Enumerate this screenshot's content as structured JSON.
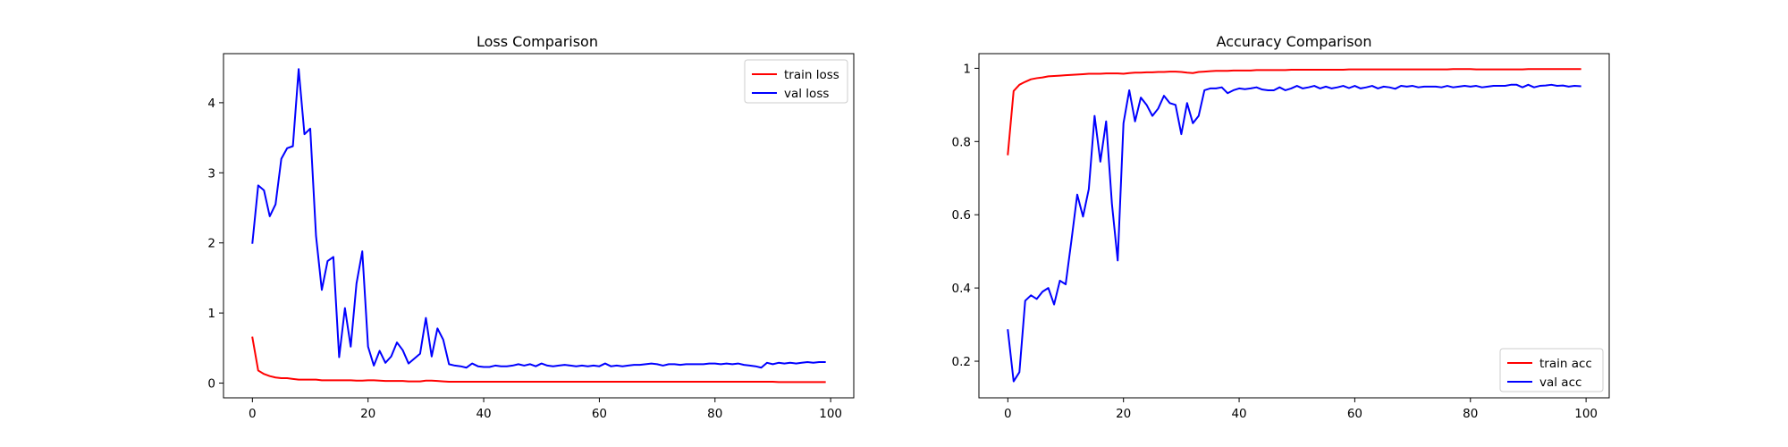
{
  "chart_data": [
    {
      "type": "line",
      "title": "Loss Comparison",
      "xlabel": "",
      "ylabel": "",
      "xlim": [
        -5,
        104
      ],
      "ylim": [
        -0.21,
        4.7
      ],
      "xticks": [
        0,
        20,
        40,
        60,
        80,
        100
      ],
      "yticks": [
        0,
        1,
        2,
        3,
        4
      ],
      "legend_position": "upper right",
      "series": [
        {
          "name": "train loss",
          "color": "#ff0000",
          "x_start": 0,
          "values": [
            0.65,
            0.18,
            0.13,
            0.1,
            0.08,
            0.07,
            0.07,
            0.06,
            0.05,
            0.05,
            0.05,
            0.05,
            0.04,
            0.04,
            0.04,
            0.04,
            0.04,
            0.04,
            0.035,
            0.035,
            0.04,
            0.04,
            0.035,
            0.03,
            0.03,
            0.03,
            0.03,
            0.025,
            0.025,
            0.025,
            0.035,
            0.035,
            0.03,
            0.025,
            0.02,
            0.02,
            0.02,
            0.02,
            0.02,
            0.02,
            0.02,
            0.02,
            0.02,
            0.02,
            0.02,
            0.02,
            0.02,
            0.02,
            0.02,
            0.02,
            0.02,
            0.02,
            0.02,
            0.02,
            0.02,
            0.02,
            0.02,
            0.02,
            0.02,
            0.02,
            0.02,
            0.02,
            0.02,
            0.02,
            0.02,
            0.02,
            0.02,
            0.02,
            0.02,
            0.02,
            0.02,
            0.02,
            0.02,
            0.02,
            0.02,
            0.02,
            0.02,
            0.02,
            0.02,
            0.02,
            0.02,
            0.02,
            0.02,
            0.02,
            0.02,
            0.02,
            0.02,
            0.02,
            0.02,
            0.02,
            0.02,
            0.015,
            0.015,
            0.015,
            0.015,
            0.015,
            0.015,
            0.015,
            0.015,
            0.015
          ]
        },
        {
          "name": "val loss",
          "color": "#0000ff",
          "x_start": 0,
          "values": [
            2.0,
            2.82,
            2.75,
            2.38,
            2.55,
            3.2,
            3.35,
            3.38,
            4.48,
            3.55,
            3.63,
            2.1,
            1.33,
            1.74,
            1.8,
            0.37,
            1.07,
            0.52,
            1.42,
            1.88,
            0.52,
            0.25,
            0.46,
            0.29,
            0.38,
            0.58,
            0.47,
            0.28,
            0.35,
            0.42,
            0.93,
            0.38,
            0.78,
            0.62,
            0.27,
            0.25,
            0.24,
            0.22,
            0.28,
            0.24,
            0.23,
            0.23,
            0.25,
            0.24,
            0.24,
            0.25,
            0.27,
            0.25,
            0.27,
            0.24,
            0.28,
            0.25,
            0.24,
            0.25,
            0.26,
            0.25,
            0.24,
            0.25,
            0.24,
            0.25,
            0.24,
            0.28,
            0.24,
            0.25,
            0.24,
            0.25,
            0.26,
            0.26,
            0.27,
            0.28,
            0.27,
            0.25,
            0.27,
            0.27,
            0.26,
            0.27,
            0.27,
            0.27,
            0.27,
            0.28,
            0.28,
            0.27,
            0.28,
            0.27,
            0.28,
            0.26,
            0.25,
            0.24,
            0.22,
            0.29,
            0.27,
            0.29,
            0.28,
            0.29,
            0.28,
            0.29,
            0.3,
            0.29,
            0.3,
            0.3
          ]
        }
      ]
    },
    {
      "type": "line",
      "title": "Accuracy Comparison",
      "xlabel": "",
      "ylabel": "",
      "xlim": [
        -5,
        104
      ],
      "ylim": [
        0.1,
        1.04
      ],
      "xticks": [
        0,
        20,
        40,
        60,
        80,
        100
      ],
      "yticks": [
        0.2,
        0.4,
        0.6,
        0.8,
        1.0
      ],
      "legend_position": "lower right",
      "series": [
        {
          "name": "train acc",
          "color": "#ff0000",
          "x_start": 0,
          "values": [
            0.765,
            0.938,
            0.955,
            0.963,
            0.97,
            0.973,
            0.975,
            0.978,
            0.979,
            0.98,
            0.981,
            0.982,
            0.983,
            0.984,
            0.985,
            0.985,
            0.985,
            0.986,
            0.986,
            0.986,
            0.985,
            0.987,
            0.988,
            0.988,
            0.989,
            0.989,
            0.99,
            0.99,
            0.991,
            0.991,
            0.99,
            0.988,
            0.987,
            0.99,
            0.991,
            0.992,
            0.993,
            0.993,
            0.993,
            0.994,
            0.994,
            0.994,
            0.994,
            0.995,
            0.995,
            0.995,
            0.995,
            0.995,
            0.995,
            0.996,
            0.996,
            0.996,
            0.996,
            0.996,
            0.996,
            0.996,
            0.996,
            0.996,
            0.996,
            0.997,
            0.997,
            0.997,
            0.997,
            0.997,
            0.997,
            0.997,
            0.997,
            0.997,
            0.997,
            0.997,
            0.997,
            0.997,
            0.997,
            0.997,
            0.997,
            0.997,
            0.997,
            0.998,
            0.998,
            0.998,
            0.998,
            0.997,
            0.997,
            0.997,
            0.997,
            0.997,
            0.997,
            0.997,
            0.997,
            0.997,
            0.998,
            0.998,
            0.998,
            0.998,
            0.998,
            0.998,
            0.998,
            0.998,
            0.998,
            0.998
          ]
        },
        {
          "name": "val acc",
          "color": "#0000ff",
          "x_start": 0,
          "values": [
            0.285,
            0.145,
            0.17,
            0.365,
            0.38,
            0.37,
            0.39,
            0.4,
            0.355,
            0.42,
            0.41,
            0.53,
            0.655,
            0.595,
            0.67,
            0.87,
            0.745,
            0.855,
            0.63,
            0.475,
            0.85,
            0.94,
            0.855,
            0.92,
            0.9,
            0.87,
            0.89,
            0.925,
            0.905,
            0.9,
            0.82,
            0.905,
            0.85,
            0.87,
            0.94,
            0.945,
            0.945,
            0.948,
            0.932,
            0.94,
            0.945,
            0.943,
            0.945,
            0.948,
            0.942,
            0.94,
            0.94,
            0.948,
            0.94,
            0.945,
            0.952,
            0.945,
            0.948,
            0.952,
            0.945,
            0.95,
            0.945,
            0.948,
            0.952,
            0.946,
            0.952,
            0.945,
            0.948,
            0.952,
            0.945,
            0.95,
            0.948,
            0.944,
            0.952,
            0.95,
            0.952,
            0.948,
            0.95,
            0.95,
            0.95,
            0.948,
            0.952,
            0.948,
            0.95,
            0.952,
            0.95,
            0.952,
            0.948,
            0.95,
            0.952,
            0.952,
            0.952,
            0.955,
            0.955,
            0.948,
            0.955,
            0.948,
            0.952,
            0.953,
            0.955,
            0.952,
            0.953,
            0.95,
            0.952,
            0.951
          ]
        }
      ]
    }
  ]
}
